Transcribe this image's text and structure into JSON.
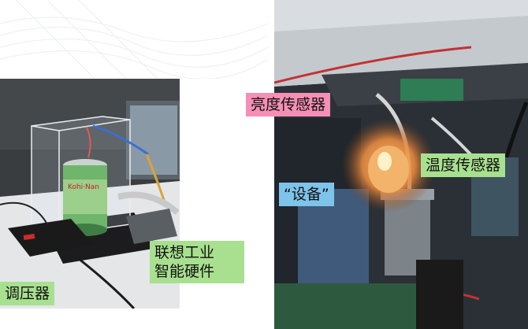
{
  "labels": {
    "regulator": "调压器",
    "iot_hardware_line1": "联想工业",
    "iot_hardware_line2": "智能硬件",
    "brightness_sensor": "亮度传感器",
    "device": "“设备”",
    "temperature_sensor": "温度传感器"
  },
  "photo_text": {
    "can_brand": "Kohi·Nan"
  },
  "colors": {
    "green_label": "#a8e08f",
    "pink_label": "#f58fb5",
    "blue_label": "#7ec3ea"
  }
}
